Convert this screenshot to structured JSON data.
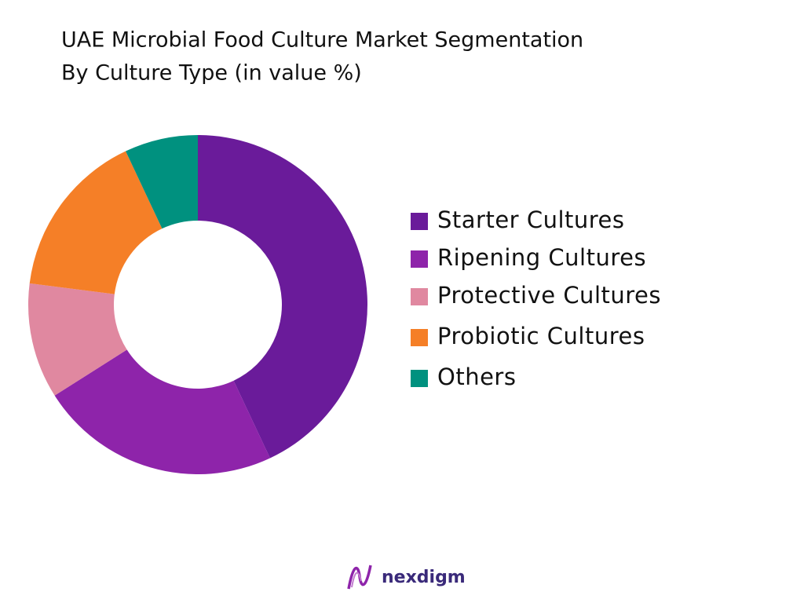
{
  "chart_data": {
    "type": "donut",
    "title": "UAE Microbial Food Culture Market Segmentation",
    "subtitle": "By Culture Type (in value %)",
    "categories": [
      "Starter Cultures",
      "Ripening Cultures",
      "Protective Cultures",
      "Probiotic Cultures",
      "Others"
    ],
    "values": [
      43,
      23,
      11,
      16,
      7
    ],
    "colors": [
      "#6a1b9a",
      "#8e24aa",
      "#e088a0",
      "#f57f27",
      "#00917f"
    ]
  },
  "footer": {
    "logo": "nexdigm"
  }
}
